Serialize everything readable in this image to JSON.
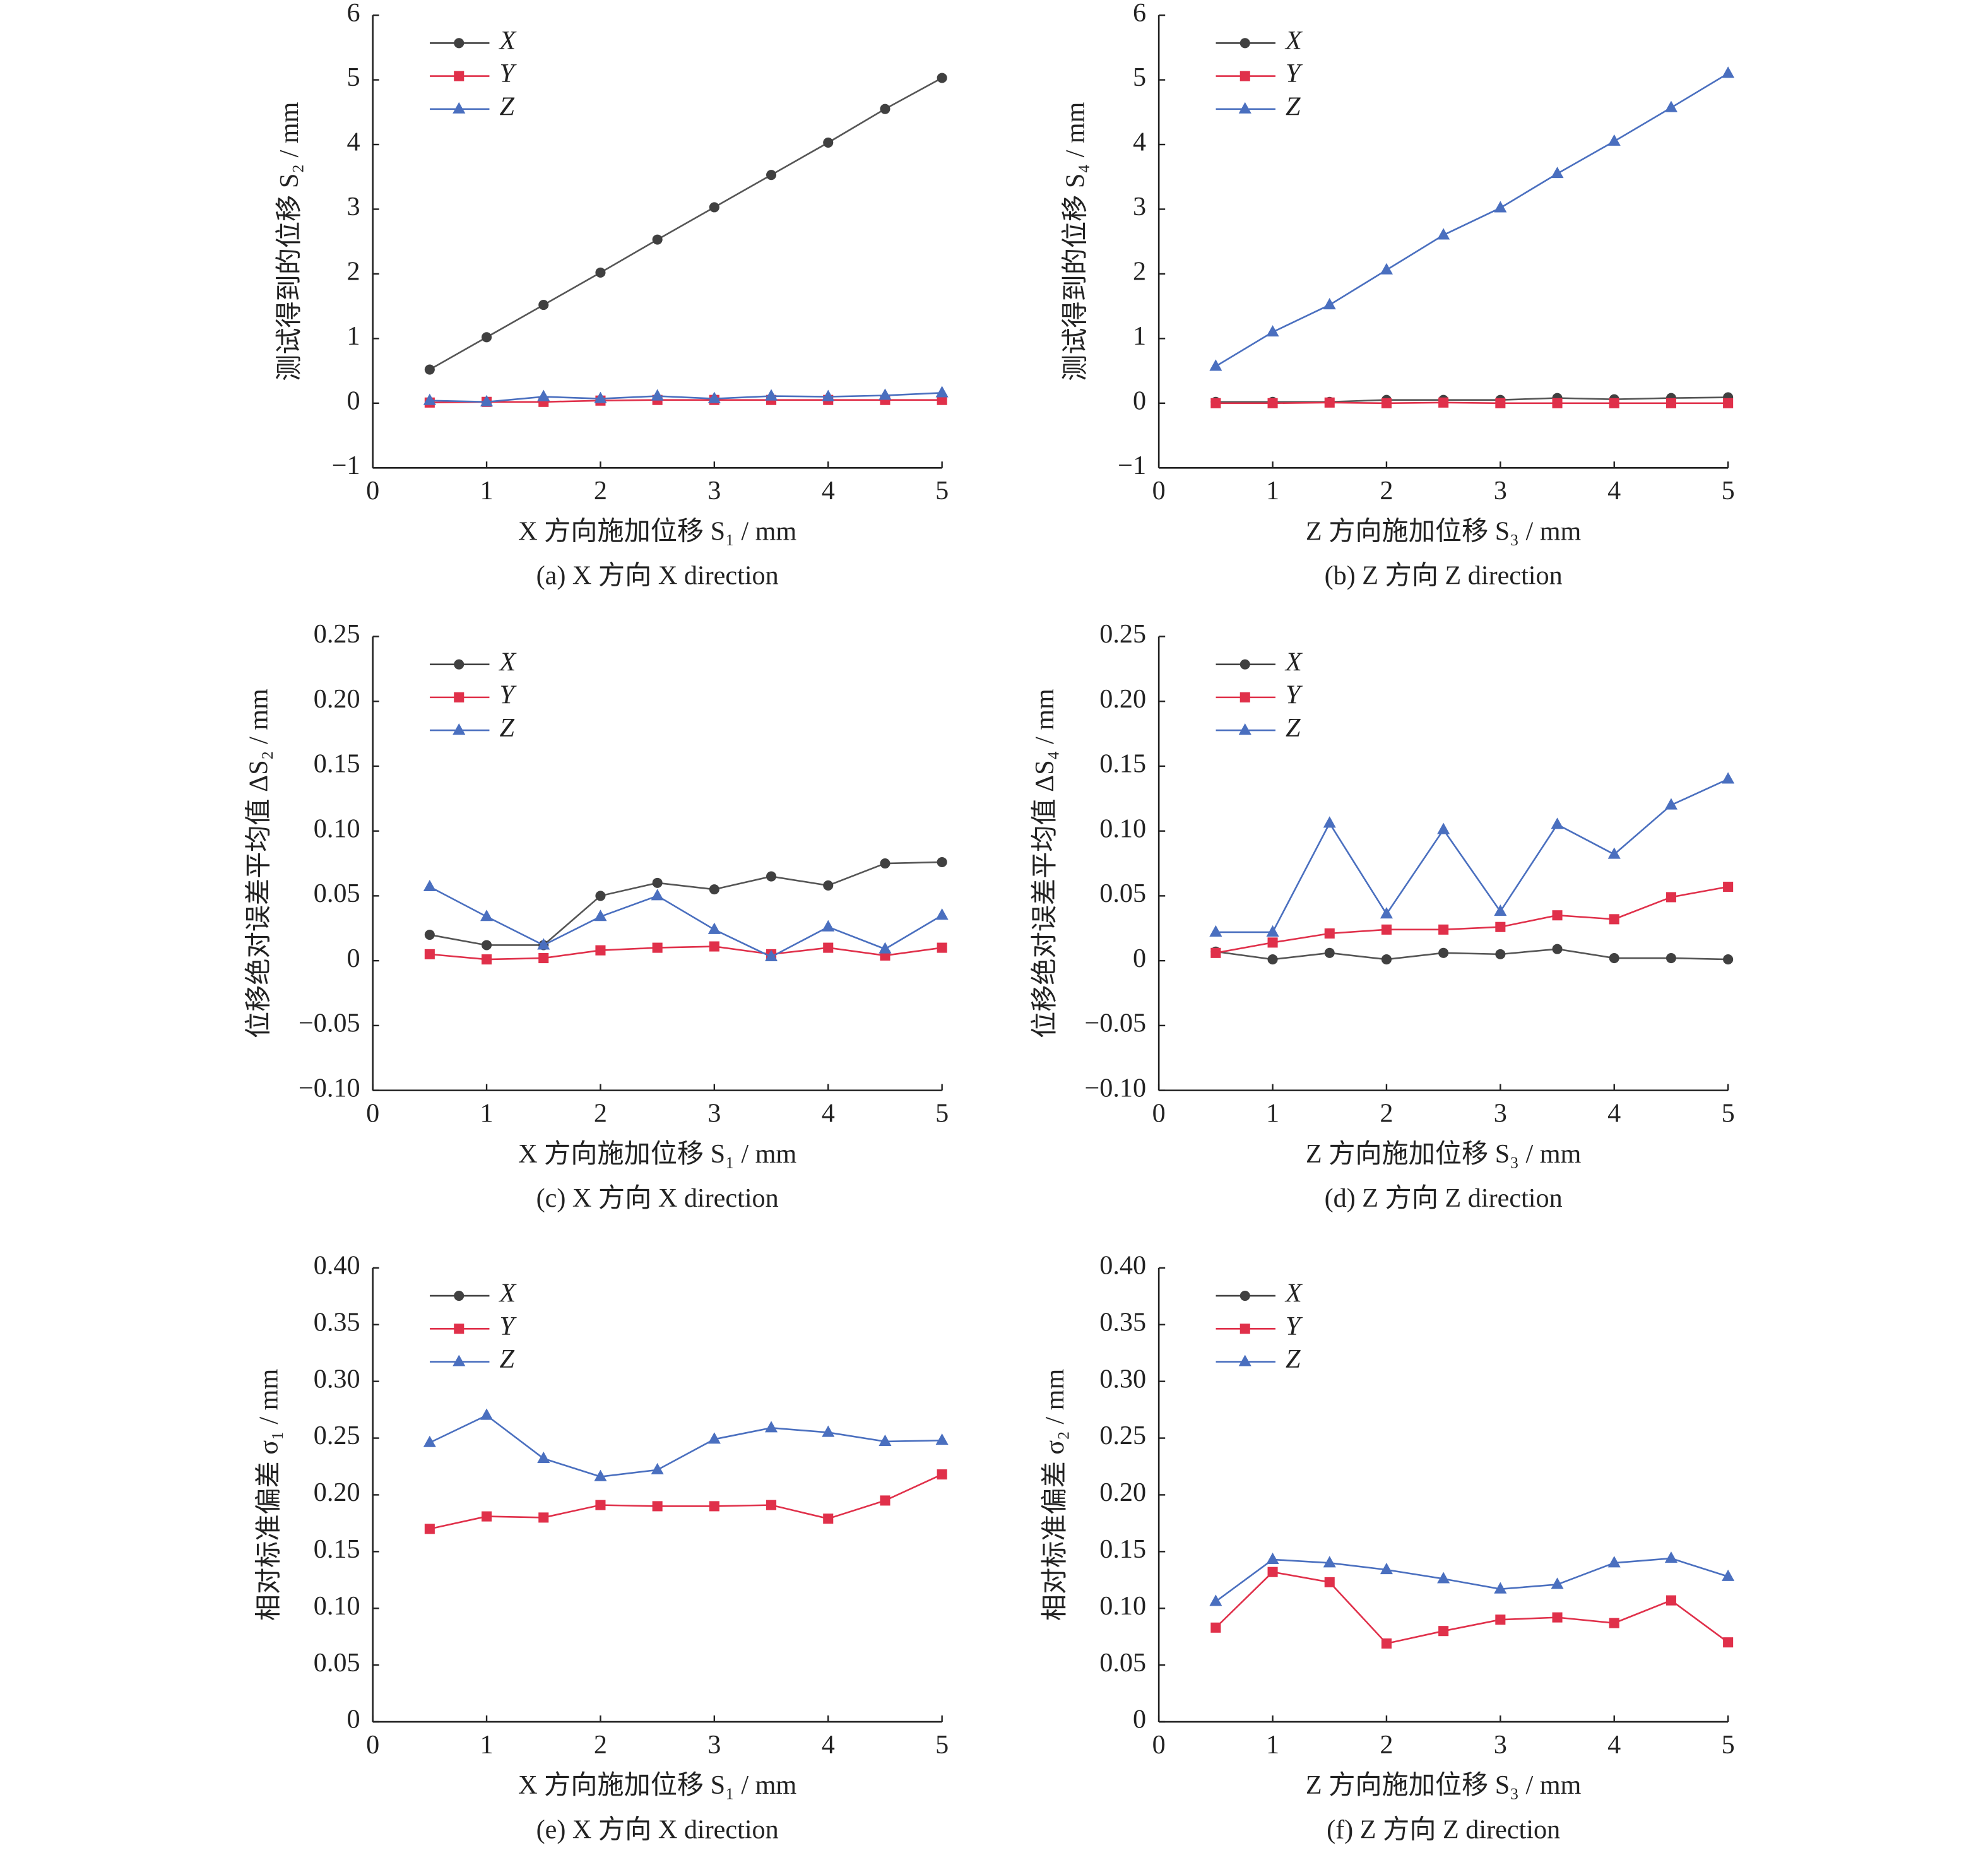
{
  "chart_data": [
    {
      "type": "line",
      "caption": "(a) X 方向 X direction",
      "xlabel": "X 方向施加位移 S₁ / mm",
      "ylabel": "测试得到的位移 S₂ / mm",
      "legend": "upper left",
      "x": [
        0.5,
        1,
        1.5,
        2,
        2.5,
        3,
        3.5,
        4,
        4.5,
        5
      ],
      "xlim": [
        0,
        5
      ],
      "xticks": [
        0,
        1,
        2,
        3,
        4,
        5
      ],
      "ylim": [
        -1,
        6
      ],
      "yticks": [
        {
          "value": -1,
          "label": "−1"
        },
        0,
        1,
        2,
        3,
        4,
        5,
        6
      ],
      "series": [
        {
          "name": "X",
          "color": "#404040",
          "marker": "circle",
          "values": [
            0.52,
            1.02,
            1.52,
            2.02,
            2.53,
            3.03,
            3.53,
            4.03,
            4.55,
            5.03
          ]
        },
        {
          "name": "Y",
          "color": "#e0304a",
          "marker": "square",
          "values": [
            0.01,
            0.02,
            0.02,
            0.04,
            0.05,
            0.05,
            0.05,
            0.05,
            0.05,
            0.05
          ]
        },
        {
          "name": "Z",
          "color": "#4a6fbf",
          "marker": "triangle",
          "values": [
            0.04,
            0.02,
            0.1,
            0.07,
            0.11,
            0.07,
            0.11,
            0.1,
            0.12,
            0.16
          ]
        }
      ]
    },
    {
      "type": "line",
      "caption": "(b) Z 方向 Z direction",
      "xlabel": "Z 方向施加位移 S₃ / mm",
      "ylabel": "测试得到的位移 S₄ / mm",
      "legend": "upper left",
      "x": [
        0.5,
        1,
        1.5,
        2,
        2.5,
        3,
        3.5,
        4,
        4.5,
        5
      ],
      "xlim": [
        0,
        5
      ],
      "xticks": [
        0,
        1,
        2,
        3,
        4,
        5
      ],
      "ylim": [
        -1,
        6
      ],
      "yticks": [
        {
          "value": -1,
          "label": "−1"
        },
        0,
        1,
        2,
        3,
        4,
        5,
        6
      ],
      "series": [
        {
          "name": "X",
          "color": "#404040",
          "marker": "circle",
          "values": [
            0.02,
            0.02,
            0.02,
            0.05,
            0.05,
            0.05,
            0.08,
            0.06,
            0.08,
            0.09
          ]
        },
        {
          "name": "Y",
          "color": "#e0304a",
          "marker": "square",
          "values": [
            0,
            0,
            0.01,
            0,
            0.01,
            0,
            0,
            0,
            0,
            0
          ]
        },
        {
          "name": "Z",
          "color": "#4a6fbf",
          "marker": "triangle",
          "values": [
            0.57,
            1.1,
            1.52,
            2.06,
            2.6,
            3.02,
            3.55,
            4.05,
            4.57,
            5.1
          ]
        }
      ]
    },
    {
      "type": "line",
      "caption": "(c) X 方向 X direction",
      "xlabel": "X 方向施加位移 S₁ / mm",
      "ylabel": "位移绝对误差平均值 ΔS₂ / mm",
      "legend": "upper left",
      "x": [
        0.5,
        1,
        1.5,
        2,
        2.5,
        3,
        3.5,
        4,
        4.5,
        5
      ],
      "xlim": [
        0,
        5
      ],
      "xticks": [
        0,
        1,
        2,
        3,
        4,
        5
      ],
      "ylim": [
        -0.1,
        0.25
      ],
      "yticks": [
        {
          "value": -0.1,
          "label": "−0.10"
        },
        {
          "value": -0.05,
          "label": "−0.05"
        },
        0,
        0.05,
        {
          "value": 0.1,
          "label": "0.10"
        },
        0.15,
        {
          "value": 0.2,
          "label": "0.20"
        },
        0.25
      ],
      "series": [
        {
          "name": "X",
          "color": "#404040",
          "marker": "circle",
          "values": [
            0.02,
            0.012,
            0.012,
            0.05,
            0.06,
            0.055,
            0.065,
            0.058,
            0.075,
            0.076
          ]
        },
        {
          "name": "Y",
          "color": "#e0304a",
          "marker": "square",
          "values": [
            0.005,
            0.001,
            0.002,
            0.008,
            0.01,
            0.011,
            0.005,
            0.01,
            0.004,
            0.01
          ]
        },
        {
          "name": "Z",
          "color": "#4a6fbf",
          "marker": "triangle",
          "values": [
            0.057,
            0.034,
            0.012,
            0.034,
            0.05,
            0.024,
            0.003,
            0.026,
            0.009,
            0.035
          ]
        }
      ]
    },
    {
      "type": "line",
      "caption": "(d) Z 方向 Z direction",
      "xlabel": "Z 方向施加位移 S₃ / mm",
      "ylabel": "位移绝对误差平均值 ΔS₄ / mm",
      "legend": "upper left",
      "x": [
        0.5,
        1,
        1.5,
        2,
        2.5,
        3,
        3.5,
        4,
        4.5,
        5
      ],
      "xlim": [
        0,
        5
      ],
      "xticks": [
        0,
        1,
        2,
        3,
        4,
        5
      ],
      "ylim": [
        -0.1,
        0.25
      ],
      "yticks": [
        {
          "value": -0.1,
          "label": "−0.10"
        },
        {
          "value": -0.05,
          "label": "−0.05"
        },
        0,
        0.05,
        {
          "value": 0.1,
          "label": "0.10"
        },
        0.15,
        {
          "value": 0.2,
          "label": "0.20"
        },
        0.25
      ],
      "series": [
        {
          "name": "X",
          "color": "#404040",
          "marker": "circle",
          "values": [
            0.007,
            0.001,
            0.006,
            0.001,
            0.006,
            0.005,
            0.009,
            0.002,
            0.002,
            0.001
          ]
        },
        {
          "name": "Y",
          "color": "#e0304a",
          "marker": "square",
          "values": [
            0.006,
            0.014,
            0.021,
            0.024,
            0.024,
            0.026,
            0.035,
            0.032,
            0.049,
            0.057
          ]
        },
        {
          "name": "Z",
          "color": "#4a6fbf",
          "marker": "triangle",
          "values": [
            0.022,
            0.022,
            0.106,
            0.036,
            0.101,
            0.038,
            0.105,
            0.082,
            0.12,
            0.14
          ]
        }
      ]
    },
    {
      "type": "line",
      "caption": "(e) X 方向 X direction",
      "xlabel": "X 方向施加位移 S₁ / mm",
      "ylabel": "相对标准偏差 σ₁ / mm",
      "legend": "upper left",
      "x": [
        0.5,
        1,
        1.5,
        2,
        2.5,
        3,
        3.5,
        4,
        4.5,
        5
      ],
      "xlim": [
        0,
        5
      ],
      "xticks": [
        0,
        1,
        2,
        3,
        4,
        5
      ],
      "ylim": [
        0,
        0.4
      ],
      "yticks": [
        0,
        0.05,
        {
          "value": 0.1,
          "label": "0.10"
        },
        0.15,
        {
          "value": 0.2,
          "label": "0.20"
        },
        0.25,
        {
          "value": 0.3,
          "label": "0.30"
        },
        0.35,
        {
          "value": 0.4,
          "label": "0.40"
        }
      ],
      "series": [
        {
          "name": "X",
          "color": "#404040",
          "marker": "circle",
          "values": [
            null,
            null,
            null,
            null,
            null,
            null,
            null,
            null,
            null,
            null
          ]
        },
        {
          "name": "Y",
          "color": "#e0304a",
          "marker": "square",
          "values": [
            0.17,
            0.181,
            0.18,
            0.191,
            0.19,
            0.19,
            0.191,
            0.179,
            0.195,
            0.218
          ]
        },
        {
          "name": "Z",
          "color": "#4a6fbf",
          "marker": "triangle",
          "values": [
            0.246,
            0.27,
            0.232,
            0.216,
            0.222,
            0.249,
            0.259,
            0.255,
            0.247,
            0.248
          ]
        }
      ]
    },
    {
      "type": "line",
      "caption": "(f) Z 方向 Z direction",
      "xlabel": "Z 方向施加位移 S₃ / mm",
      "ylabel": "相对标准偏差 σ₂ / mm",
      "legend": "upper left",
      "x": [
        0.5,
        1,
        1.5,
        2,
        2.5,
        3,
        3.5,
        4,
        4.5,
        5
      ],
      "xlim": [
        0,
        5
      ],
      "xticks": [
        0,
        1,
        2,
        3,
        4,
        5
      ],
      "ylim": [
        0,
        0.4
      ],
      "yticks": [
        0,
        0.05,
        {
          "value": 0.1,
          "label": "0.10"
        },
        0.15,
        {
          "value": 0.2,
          "label": "0.20"
        },
        0.25,
        {
          "value": 0.3,
          "label": "0.30"
        },
        0.35,
        {
          "value": 0.4,
          "label": "0.40"
        }
      ],
      "series": [
        {
          "name": "X",
          "color": "#404040",
          "marker": "circle",
          "values": [
            null,
            null,
            null,
            null,
            null,
            null,
            null,
            null,
            null,
            null
          ]
        },
        {
          "name": "Y",
          "color": "#e0304a",
          "marker": "square",
          "values": [
            0.083,
            0.132,
            0.123,
            0.069,
            0.08,
            0.09,
            0.092,
            0.087,
            0.107,
            0.07
          ]
        },
        {
          "name": "Z",
          "color": "#4a6fbf",
          "marker": "triangle",
          "values": [
            0.106,
            0.143,
            0.14,
            0.134,
            0.126,
            0.117,
            0.121,
            0.14,
            0.144,
            0.128
          ]
        }
      ]
    }
  ]
}
